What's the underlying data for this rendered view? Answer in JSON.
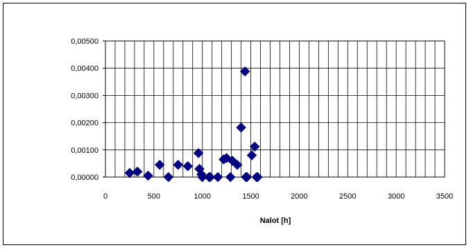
{
  "chart_data": {
    "type": "scatter",
    "title": "",
    "xlabel": "Nalot [h]",
    "ylabel": "",
    "xlim": [
      0,
      3500
    ],
    "ylim": [
      0,
      0.005
    ],
    "x_ticks": [
      "0",
      "500",
      "1000",
      "1500",
      "2000",
      "2500",
      "3000",
      "3500"
    ],
    "y_ticks": [
      "0,00000",
      "0,00100",
      "0,00200",
      "0,00300",
      "0,00400",
      "0,00500"
    ],
    "x_grid_step": 100,
    "grid": true,
    "legend": "none",
    "marker": "diamond",
    "marker_color": "#000080",
    "series": [
      {
        "x": [
          250,
          330,
          440,
          560,
          650,
          750,
          850,
          960,
          970,
          990,
          1000,
          1070,
          1080,
          1160,
          1220,
          1250,
          1290,
          1310,
          1360,
          1400,
          1440,
          1450,
          1460,
          1510,
          1540,
          1560,
          1570
        ],
        "y": [
          0.00015,
          0.0002,
          5e-05,
          0.00045,
          0.0,
          0.00045,
          0.0004,
          0.00088,
          0.0003,
          0.0001,
          0.0,
          0.0,
          0.0,
          0.0,
          0.00065,
          0.0007,
          0.0,
          0.0006,
          0.00045,
          0.00182,
          0.00388,
          0.0,
          0.0,
          0.0008,
          0.00112,
          0.0,
          0.0
        ]
      }
    ]
  }
}
